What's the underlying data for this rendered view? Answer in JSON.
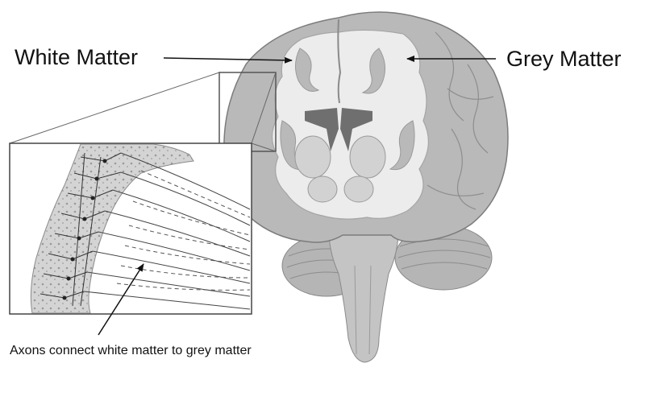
{
  "labels": {
    "white_matter": "White Matter",
    "grey_matter": "Grey Matter",
    "axons_caption": "Axons connect white matter to grey matter"
  },
  "colors": {
    "background": "#ffffff",
    "grey_matter_fill": "#b9b9b9",
    "white_matter_fill": "#ececec",
    "ventricle_fill": "#6f6f6f",
    "line": "#333333"
  }
}
